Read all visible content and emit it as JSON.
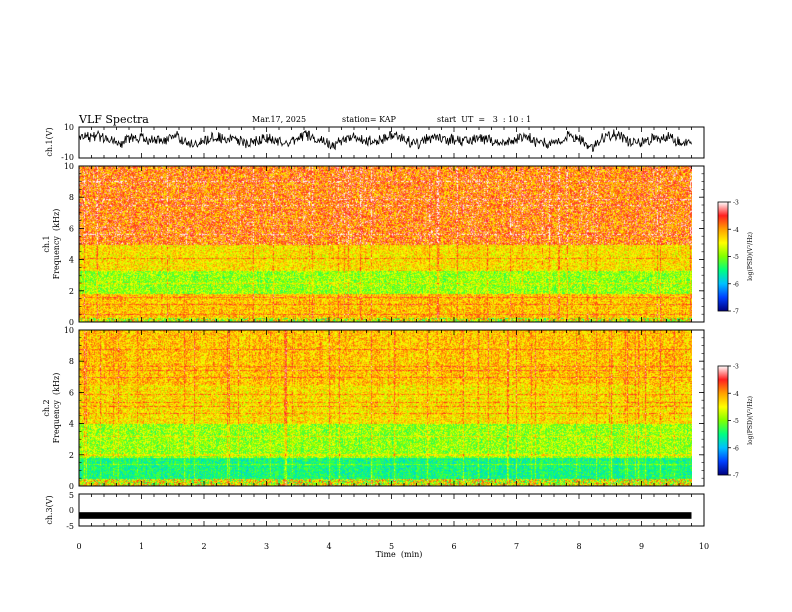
{
  "header": {
    "title": "VLF Spectra",
    "date": "Mar.17, 2025",
    "station": "station= KAP",
    "start_ut": "start  UT  =   3  : 10 : 1"
  },
  "chart_data": [
    {
      "type": "line",
      "name": "ch1-waveform",
      "ylabel": "ch.1(V)",
      "ylim": [
        -10,
        10
      ],
      "ytick_labels": [
        "10",
        "-10"
      ],
      "xlim": [
        0,
        10
      ],
      "data_extent_min": [
        0,
        9.8
      ],
      "description_values": {
        "mean": 2,
        "amplitude": 4
      }
    },
    {
      "type": "heatmap",
      "name": "ch1-spectrogram",
      "ylabel": "ch.1\nFrequency  (kHz)",
      "ylabel_lines": [
        "ch.1",
        "Frequency  (kHz)"
      ],
      "ylim": [
        0,
        10
      ],
      "ytick_labels": [
        "0",
        "2",
        "4",
        "6",
        "8",
        "10"
      ],
      "xlim": [
        0,
        10
      ],
      "data_extent_min": [
        0,
        9.8
      ],
      "bands_khz": [
        {
          "from": 0.0,
          "to": 0.3,
          "level": "mixed"
        },
        {
          "from": 0.3,
          "to": 1.8,
          "level": "red-yellow"
        },
        {
          "from": 1.8,
          "to": 3.3,
          "level": "green-yellow"
        },
        {
          "from": 3.3,
          "to": 5.0,
          "level": "yellow-red"
        },
        {
          "from": 5.0,
          "to": 10.0,
          "level": "red-white"
        }
      ],
      "colorbar": {
        "label": "log(PSD)(V²/Hz)",
        "range": [
          -7,
          -3
        ],
        "tick_labels": [
          "-3",
          "-4",
          "-5",
          "-6",
          "-7"
        ]
      }
    },
    {
      "type": "heatmap",
      "name": "ch2-spectrogram",
      "ylabel": "ch.2\nFrequency  (kHz)",
      "ylabel_lines": [
        "ch.2",
        "Frequency  (kHz)"
      ],
      "ylim": [
        0,
        10
      ],
      "ytick_labels": [
        "0",
        "2",
        "4",
        "6",
        "8",
        "10"
      ],
      "xlim": [
        0,
        10
      ],
      "data_extent_min": [
        0,
        9.8
      ],
      "bands_khz": [
        {
          "from": 0.0,
          "to": 0.5,
          "level": "mixed"
        },
        {
          "from": 0.5,
          "to": 1.8,
          "level": "cyan-green"
        },
        {
          "from": 1.8,
          "to": 4.0,
          "level": "green-yellow"
        },
        {
          "from": 4.0,
          "to": 6.5,
          "level": "yellow-red"
        },
        {
          "from": 6.5,
          "to": 10.0,
          "level": "red-yellow"
        }
      ],
      "colorbar": {
        "label": "log(PSD)(V²/Hz)",
        "range": [
          -7,
          -3
        ],
        "tick_labels": [
          "-3",
          "-4",
          "-5",
          "-6",
          "-7"
        ]
      }
    },
    {
      "type": "line",
      "name": "ch3-waveform",
      "ylabel": "ch.3(V)",
      "ylim": [
        -5,
        5
      ],
      "ytick_labels": [
        "5",
        "0",
        "-5"
      ],
      "xlim": [
        0,
        10
      ],
      "data_extent_min": [
        0,
        9.8
      ],
      "description_values": {
        "mean": -1.7,
        "amplitude": 0.4
      }
    }
  ],
  "x_axis": {
    "label": "Time  (min)",
    "tick_labels": [
      "0",
      "1",
      "2",
      "3",
      "4",
      "5",
      "6",
      "7",
      "8",
      "9",
      "10"
    ]
  },
  "colors": {
    "axis": "#000000",
    "colormap": [
      "#00007f",
      "#0040ff",
      "#00c0ff",
      "#00ff80",
      "#80ff00",
      "#ffff00",
      "#ffa000",
      "#ff2020",
      "#ffffff"
    ]
  }
}
